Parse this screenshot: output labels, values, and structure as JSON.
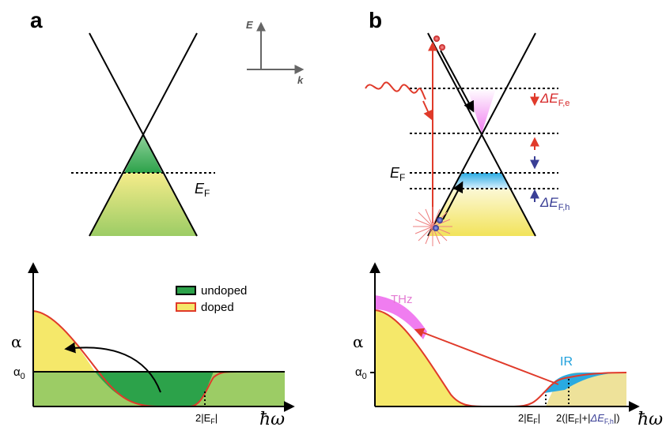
{
  "panel_a": {
    "letter": "a",
    "axis_e": "E",
    "axis_k": "k",
    "fermi_label_main": "E",
    "fermi_label_sub": "F",
    "alpha_label": "α",
    "alpha0_main": "α",
    "alpha0_sub": "0",
    "xlabel": "ħω",
    "tick_label": "2|E",
    "tick_label_sub": "F",
    "tick_label_end": "|",
    "legend": [
      {
        "label": "undoped",
        "color": "#2ca24a"
      },
      {
        "label": "doped",
        "color": "#f5e86a",
        "border": "#e03a2a"
      }
    ]
  },
  "panel_b": {
    "letter": "b",
    "fermi_label_main": "E",
    "fermi_label_sub": "F",
    "delta_e_main": "ΔE",
    "delta_e_sub": "F,e",
    "delta_h_main": "ΔE",
    "delta_h_sub": "F,h",
    "alpha_label": "α",
    "alpha0_main": "α",
    "alpha0_sub": "0",
    "xlabel": "ħω",
    "thz_label": "THz",
    "ir_label": "IR",
    "tick1": "2|E",
    "tick1_sub": "F",
    "tick1_end": "|",
    "tick2_a": "2(|E",
    "tick2_b": "F",
    "tick2_c": "|+|",
    "tick2_d": "ΔE",
    "tick2_e": "F,h",
    "tick2_f": "|)"
  },
  "colors": {
    "green_dark": "#2ca24a",
    "green_light": "#9ccc65",
    "yellow": "#f5e86a",
    "red": "#e03a2a",
    "blue": "#3a3f96",
    "pink": "#f07df0",
    "cyan": "#29aae1",
    "khaki": "#eee29a"
  }
}
